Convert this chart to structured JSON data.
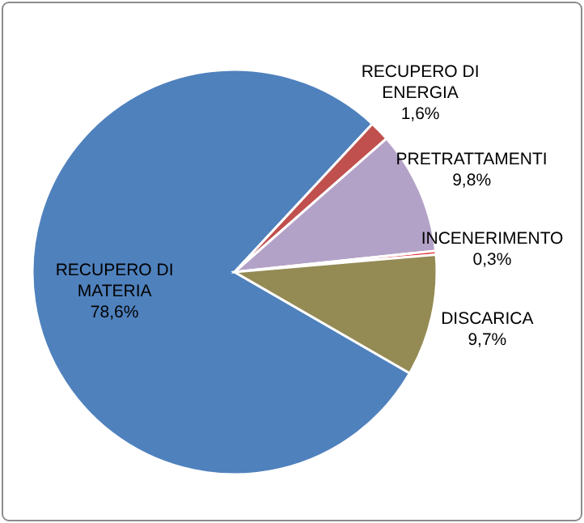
{
  "chart_data": {
    "type": "pie",
    "categories": [
      "RECUPERO DI MATERIA",
      "RECUPERO DI ENERGIA",
      "PRETRATTAMENTI",
      "INCENERIMENTO",
      "DISCARICA"
    ],
    "values": [
      78.6,
      1.6,
      9.8,
      0.3,
      9.7
    ],
    "colors": [
      "#4f81bd",
      "#c0504d",
      "#b3a2c7",
      "#e03c3c",
      "#948a54"
    ],
    "value_labels": [
      "78,6%",
      "1,6%",
      "9,8%",
      "0,3%",
      "9,7%"
    ]
  }
}
